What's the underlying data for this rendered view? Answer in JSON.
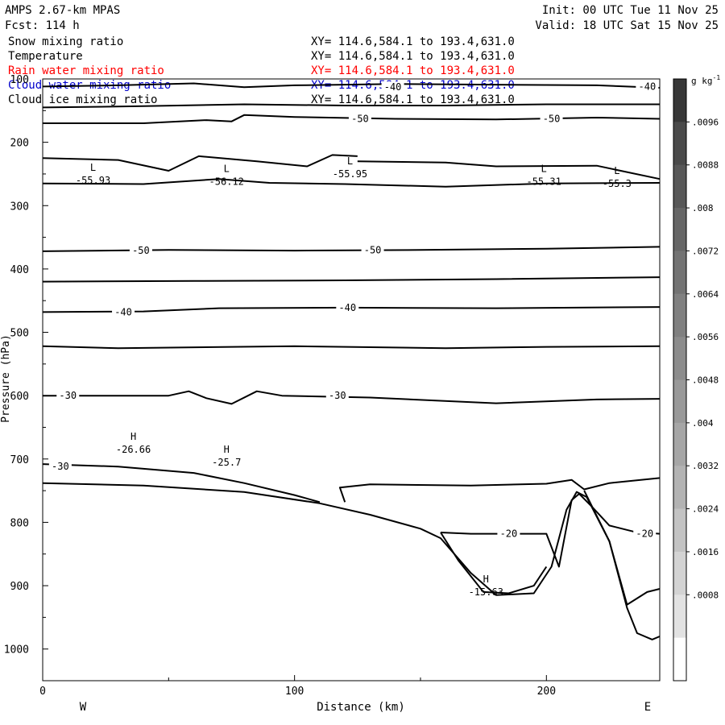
{
  "header": {
    "model": "AMPS 2.67-km MPAS",
    "init": "Init: 00 UTC Tue 11 Nov 25",
    "fcst": "Fcst: 114 h",
    "valid": "Valid: 18 UTC Sat 15 Nov 25"
  },
  "fields": [
    {
      "name": "Snow mixing ratio",
      "xy": "XY= 114.6,584.1 to 193.4,631.0",
      "color": "#000000"
    },
    {
      "name": "Temperature",
      "xy": "XY= 114.6,584.1 to 193.4,631.0",
      "color": "#000000"
    },
    {
      "name": "Rain water mixing ratio",
      "xy": "XY= 114.6,584.1 to 193.4,631.0",
      "color": "#ff0000"
    },
    {
      "name": "Cloud water mixing ratio",
      "xy": "XY= 114.6,584.1 to 193.4,631.0",
      "color": "#0000cc"
    },
    {
      "name": "Cloud ice mixing ratio",
      "xy": "XY= 114.6,584.1 to 193.4,631.0",
      "color": "#000000"
    }
  ],
  "chart_data": {
    "type": "contour",
    "xlabel": "Distance (km)",
    "ylabel": "Pressure (hPa)",
    "xlim": [
      0,
      245
    ],
    "ylim": [
      1050,
      100
    ],
    "x_ticks": [
      0,
      100,
      200
    ],
    "x_tick_labels": [
      "0",
      "100",
      "200"
    ],
    "y_ticks": [
      100,
      200,
      300,
      400,
      500,
      600,
      700,
      800,
      900,
      1000
    ],
    "y_tick_labels": [
      "100",
      "200",
      "300",
      "400",
      "500",
      "600",
      "700",
      "800",
      "900",
      "1000"
    ],
    "x_end_labels": {
      "left": "W",
      "right": "E"
    },
    "temperature_contours": [
      {
        "level": -40,
        "points": [
          [
            0,
            112
          ],
          [
            30,
            110
          ],
          [
            60,
            107
          ],
          [
            80,
            113
          ],
          [
            100,
            110
          ],
          [
            140,
            108
          ],
          [
            180,
            109
          ],
          [
            220,
            110
          ],
          [
            245,
            114
          ]
        ]
      },
      {
        "level": -50,
        "points": [
          [
            0,
            145
          ],
          [
            40,
            143
          ],
          [
            80,
            140
          ],
          [
            120,
            142
          ],
          [
            160,
            142
          ],
          [
            200,
            140
          ],
          [
            245,
            140
          ]
        ]
      },
      {
        "level": -50,
        "points": [
          [
            0,
            170
          ],
          [
            40,
            170
          ],
          [
            65,
            165
          ],
          [
            75,
            167
          ],
          [
            80,
            157
          ],
          [
            100,
            160
          ],
          [
            140,
            163
          ],
          [
            180,
            164
          ],
          [
            220,
            161
          ],
          [
            245,
            163
          ]
        ]
      },
      {
        "level": null,
        "points": [
          [
            0,
            225
          ],
          [
            30,
            228
          ],
          [
            50,
            245
          ],
          [
            62,
            222
          ],
          [
            85,
            230
          ],
          [
            105,
            238
          ],
          [
            115,
            220
          ],
          [
            125,
            222
          ]
        ]
      },
      {
        "level": null,
        "points": [
          [
            125,
            230
          ],
          [
            160,
            232
          ],
          [
            180,
            238
          ],
          [
            220,
            237
          ],
          [
            245,
            258
          ]
        ]
      },
      {
        "level": null,
        "points": [
          [
            0,
            265
          ],
          [
            40,
            266
          ],
          [
            70,
            258
          ],
          [
            90,
            264
          ],
          [
            120,
            266
          ],
          [
            160,
            270
          ],
          [
            200,
            265
          ],
          [
            245,
            264
          ]
        ]
      },
      {
        "level": -50,
        "points": [
          [
            0,
            372
          ],
          [
            50,
            370
          ],
          [
            100,
            371
          ],
          [
            150,
            370
          ],
          [
            200,
            368
          ],
          [
            245,
            365
          ]
        ]
      },
      {
        "level": null,
        "points": [
          [
            0,
            420
          ],
          [
            60,
            419
          ],
          [
            120,
            418
          ],
          [
            180,
            416
          ],
          [
            245,
            413
          ]
        ]
      },
      {
        "level": -40,
        "points": [
          [
            0,
            468
          ],
          [
            40,
            467
          ],
          [
            70,
            462
          ],
          [
            120,
            461
          ],
          [
            180,
            462
          ],
          [
            245,
            460
          ]
        ]
      },
      {
        "level": null,
        "points": [
          [
            0,
            522
          ],
          [
            30,
            525
          ],
          [
            100,
            522
          ],
          [
            160,
            525
          ],
          [
            200,
            523
          ],
          [
            245,
            522
          ]
        ]
      },
      {
        "level": -30,
        "points": [
          [
            0,
            600
          ],
          [
            50,
            600
          ],
          [
            58,
            593
          ],
          [
            65,
            604
          ],
          [
            75,
            613
          ],
          [
            85,
            593
          ],
          [
            95,
            600
          ],
          [
            130,
            603
          ],
          [
            180,
            612
          ],
          [
            220,
            606
          ],
          [
            245,
            605
          ]
        ]
      },
      {
        "level": -30,
        "points": [
          [
            0,
            708
          ],
          [
            30,
            712
          ],
          [
            60,
            722
          ],
          [
            80,
            738
          ],
          [
            100,
            757
          ],
          [
            110,
            768
          ]
        ]
      },
      {
        "level": null,
        "points": [
          [
            120,
            768
          ],
          [
            118,
            745
          ],
          [
            130,
            740
          ],
          [
            170,
            742
          ],
          [
            200,
            739
          ],
          [
            210,
            733
          ],
          [
            215,
            748
          ],
          [
            225,
            738
          ],
          [
            245,
            730
          ]
        ]
      },
      {
        "level": -20,
        "points": [
          [
            158,
            816
          ],
          [
            170,
            818
          ],
          [
            195,
            818
          ],
          [
            200,
            818
          ],
          [
            205,
            870
          ],
          [
            210,
            765
          ],
          [
            213,
            755
          ],
          [
            218,
            775
          ],
          [
            225,
            805
          ],
          [
            235,
            815
          ],
          [
            245,
            818
          ]
        ]
      },
      {
        "level": null,
        "points": [
          [
            158,
            816
          ],
          [
            165,
            860
          ],
          [
            175,
            910
          ],
          [
            185,
            912
          ],
          [
            195,
            900
          ],
          [
            200,
            870
          ]
        ]
      },
      {
        "level": null,
        "points": [
          [
            215,
            750
          ],
          [
            225,
            830
          ],
          [
            232,
            930
          ],
          [
            240,
            910
          ],
          [
            245,
            905
          ]
        ]
      }
    ],
    "contour_labels": [
      {
        "text": "-40",
        "x": 139,
        "y": 113
      },
      {
        "text": "-40",
        "x": 240,
        "y": 112
      },
      {
        "text": "-50",
        "x": 126,
        "y": 163
      },
      {
        "text": "-50",
        "x": 202,
        "y": 163
      },
      {
        "text": "-50",
        "x": 39,
        "y": 371
      },
      {
        "text": "-50",
        "x": 131,
        "y": 370
      },
      {
        "text": "-40",
        "x": 32,
        "y": 468
      },
      {
        "text": "-40",
        "x": 121,
        "y": 461
      },
      {
        "text": "-30",
        "x": 10,
        "y": 600
      },
      {
        "text": "-30",
        "x": 117,
        "y": 600
      },
      {
        "text": "-30",
        "x": 7,
        "y": 712
      },
      {
        "text": "-20",
        "x": 185,
        "y": 818
      },
      {
        "text": "-20",
        "x": 239,
        "y": 818
      }
    ],
    "extrema": [
      {
        "type": "L",
        "value": "-55.93",
        "x": 20,
        "y": 245
      },
      {
        "type": "L",
        "value": "-56.12",
        "x": 73,
        "y": 247
      },
      {
        "type": "L",
        "value": "-55.95",
        "x": 122,
        "y": 235
      },
      {
        "type": "L",
        "value": "-55.31",
        "x": 199,
        "y": 247
      },
      {
        "type": "L",
        "value": "-55.3",
        "x": 228,
        "y": 250
      },
      {
        "type": "H",
        "value": "-26.66",
        "x": 36,
        "y": 670
      },
      {
        "type": "H",
        "value": "-25.7",
        "x": 73,
        "y": 690
      },
      {
        "type": "H",
        "value": "-15.63",
        "x": 176,
        "y": 895
      }
    ],
    "terrain": [
      [
        0,
        738
      ],
      [
        40,
        742
      ],
      [
        80,
        752
      ],
      [
        110,
        770
      ],
      [
        130,
        788
      ],
      [
        150,
        810
      ],
      [
        158,
        825
      ],
      [
        170,
        880
      ],
      [
        180,
        915
      ],
      [
        195,
        912
      ],
      [
        202,
        870
      ],
      [
        208,
        780
      ],
      [
        212,
        752
      ],
      [
        216,
        760
      ],
      [
        225,
        830
      ],
      [
        232,
        935
      ],
      [
        236,
        975
      ],
      [
        242,
        985
      ],
      [
        245,
        980
      ]
    ],
    "colorbar": {
      "unit": "g kg",
      "unit_exponent": "-1",
      "tick_labels": [
        ".0096",
        ".0088",
        ".008",
        ".0072",
        ".0064",
        ".0056",
        ".0048",
        ".004",
        ".0032",
        ".0024",
        ".0016",
        ".0008"
      ],
      "levels": [
        0.0096,
        0.0088,
        0.008,
        0.0072,
        0.0064,
        0.0056,
        0.0048,
        0.004,
        0.0032,
        0.0024,
        0.0016,
        0.0008
      ],
      "colors": [
        "#373737",
        "#4a4a4a",
        "#585858",
        "#666666",
        "#737373",
        "#808080",
        "#8c8c8c",
        "#999999",
        "#a6a6a6",
        "#b3b3b3",
        "#c3c3c3",
        "#d3d3d3",
        "#e2e2e2",
        "#ffffff"
      ]
    }
  }
}
